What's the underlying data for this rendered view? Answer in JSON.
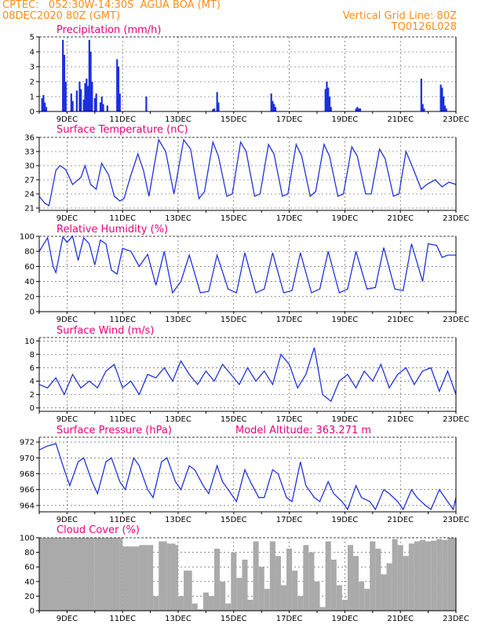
{
  "header": {
    "line1_left": "CPTEC:   052:30W-14:30S  AGUA BOA (MT)",
    "line2_left": "08DEC2020 80Z (GMT)",
    "line1_right": "Vertical Grid Line: 80Z",
    "line2_right": "TQ0126L028"
  },
  "colors": {
    "header": "#ff8c1a",
    "title": "#e6007e",
    "series": "#2233dd",
    "bars": "#1a2fe0",
    "cloud": "#aaaaaa"
  },
  "date_labels": [
    "9DEC",
    "11DEC",
    "13DEC",
    "15DEC",
    "17DEC",
    "19DEC",
    "21DEC",
    "23DEC"
  ],
  "chart_data": [
    {
      "type": "bar",
      "title": "Precipitation (mm/h)",
      "ylim": [
        0,
        5
      ],
      "yticks": [
        0,
        1,
        2,
        3,
        4,
        5
      ],
      "x_range_days": [
        8.0,
        23.0
      ],
      "x": [
        8.1,
        8.15,
        8.2,
        8.25,
        8.85,
        8.9,
        8.95,
        9.15,
        9.2,
        9.35,
        9.45,
        9.5,
        9.6,
        9.65,
        9.7,
        9.75,
        9.8,
        9.85,
        9.9,
        10.0,
        10.05,
        10.2,
        10.25,
        10.3,
        10.45,
        10.8,
        10.85,
        10.9,
        11.85,
        14.25,
        14.3,
        14.4,
        14.45,
        16.35,
        16.4,
        16.45,
        16.5,
        18.3,
        18.35,
        18.4,
        18.45,
        18.5,
        19.4,
        19.45,
        19.5,
        19.55,
        21.75,
        21.8,
        21.85,
        22.45,
        22.5,
        22.55,
        22.6,
        22.65
      ],
      "values": [
        0.9,
        1.1,
        0.6,
        0.3,
        4.8,
        3.8,
        2.0,
        1.2,
        0.7,
        1.4,
        2.0,
        1.5,
        0.8,
        1.9,
        2.2,
        1.7,
        4.8,
        4.0,
        2.0,
        0.9,
        1.2,
        0.6,
        1.0,
        0.5,
        0.4,
        3.5,
        3.0,
        1.2,
        1.0,
        0.15,
        0.2,
        1.3,
        0.6,
        1.2,
        0.7,
        0.5,
        0.3,
        1.5,
        2.0,
        1.6,
        1.0,
        0.3,
        0.2,
        0.3,
        0.2,
        0.2,
        2.2,
        0.5,
        0.2,
        1.8,
        1.6,
        1.0,
        0.4,
        0.2
      ]
    },
    {
      "type": "line",
      "title": "Surface Temperature (nC)",
      "ylim": [
        20.5,
        36
      ],
      "yticks": [
        21,
        24,
        27,
        30,
        33,
        36
      ],
      "x_range_days": [
        8.0,
        23.0
      ],
      "x": [
        8.0,
        8.2,
        8.35,
        8.6,
        8.75,
        8.95,
        9.2,
        9.5,
        9.65,
        9.85,
        10.05,
        10.25,
        10.5,
        10.7,
        10.9,
        11.05,
        11.3,
        11.55,
        11.75,
        11.95,
        12.3,
        12.55,
        12.85,
        13.2,
        13.45,
        13.75,
        13.95,
        14.25,
        14.45,
        14.75,
        14.95,
        15.25,
        15.45,
        15.75,
        15.95,
        16.25,
        16.45,
        16.75,
        16.95,
        17.25,
        17.45,
        17.75,
        17.95,
        18.25,
        18.45,
        18.75,
        18.95,
        19.25,
        19.45,
        19.75,
        19.95,
        20.25,
        20.45,
        20.75,
        20.95,
        21.2,
        21.45,
        21.75,
        21.95,
        22.25,
        22.5,
        22.75,
        23.0
      ],
      "values": [
        23.5,
        22.0,
        21.5,
        29.0,
        30.0,
        29.2,
        26.0,
        27.5,
        30.0,
        26.0,
        25.0,
        30.5,
        28.0,
        23.5,
        22.5,
        23.0,
        28.0,
        32.5,
        29.0,
        23.5,
        35.5,
        33.0,
        24.0,
        35.5,
        33.5,
        23.0,
        24.5,
        35.0,
        32.0,
        23.5,
        24.0,
        35.0,
        33.0,
        23.5,
        24.0,
        34.5,
        32.5,
        23.5,
        24.0,
        34.5,
        32.0,
        23.5,
        24.5,
        34.5,
        32.0,
        23.5,
        24.0,
        34.0,
        32.0,
        24.0,
        24.0,
        33.5,
        31.5,
        23.5,
        24.0,
        33.0,
        29.5,
        25.0,
        26.0,
        27.0,
        25.5,
        26.5,
        26.0
      ]
    },
    {
      "type": "line",
      "title": "Relative Humidity (%)",
      "ylim": [
        0,
        100
      ],
      "yticks": [
        0,
        20,
        40,
        60,
        80,
        100
      ],
      "x_range_days": [
        8.0,
        23.0
      ],
      "x": [
        8.0,
        8.3,
        8.5,
        8.6,
        8.75,
        8.85,
        9.0,
        9.2,
        9.4,
        9.6,
        9.8,
        10.0,
        10.2,
        10.4,
        10.6,
        10.8,
        11.0,
        11.3,
        11.6,
        11.9,
        12.2,
        12.5,
        12.8,
        13.1,
        13.4,
        13.8,
        14.1,
        14.4,
        14.8,
        15.1,
        15.4,
        15.8,
        16.1,
        16.4,
        16.8,
        17.1,
        17.4,
        17.8,
        18.1,
        18.4,
        18.8,
        19.1,
        19.4,
        19.8,
        20.1,
        20.4,
        20.8,
        21.1,
        21.4,
        21.8,
        22.0,
        22.3,
        22.5,
        22.7,
        23.0
      ],
      "values": [
        80,
        98,
        60,
        52,
        80,
        99,
        92,
        100,
        68,
        98,
        90,
        62,
        95,
        90,
        55,
        50,
        84,
        80,
        60,
        76,
        35,
        80,
        25,
        40,
        75,
        25,
        27,
        75,
        30,
        25,
        78,
        25,
        30,
        78,
        25,
        28,
        78,
        25,
        30,
        80,
        25,
        30,
        80,
        30,
        32,
        85,
        30,
        28,
        90,
        40,
        90,
        88,
        72,
        75,
        75
      ]
    },
    {
      "type": "line",
      "title": "Surface Wind (m/s)",
      "ylim": [
        -0.5,
        10.5
      ],
      "yticks": [
        0,
        2,
        4,
        6,
        8,
        10
      ],
      "x_range_days": [
        8.0,
        23.0
      ],
      "x": [
        8.0,
        8.3,
        8.6,
        8.9,
        9.2,
        9.5,
        9.8,
        10.1,
        10.4,
        10.7,
        11.0,
        11.3,
        11.6,
        11.9,
        12.2,
        12.5,
        12.8,
        13.1,
        13.4,
        13.7,
        14.0,
        14.3,
        14.6,
        14.9,
        15.2,
        15.5,
        15.8,
        16.1,
        16.4,
        16.7,
        17.0,
        17.3,
        17.6,
        17.9,
        18.2,
        18.5,
        18.8,
        19.1,
        19.4,
        19.7,
        20.0,
        20.3,
        20.6,
        20.9,
        21.2,
        21.5,
        21.8,
        22.1,
        22.4,
        22.7,
        23.0
      ],
      "values": [
        3.5,
        3.0,
        4.5,
        2.0,
        5.0,
        3.0,
        4.0,
        3.0,
        5.5,
        6.5,
        3.0,
        4.0,
        2.0,
        5.0,
        4.5,
        6.0,
        4.0,
        7.0,
        5.0,
        3.5,
        5.5,
        4.0,
        6.5,
        5.0,
        3.5,
        6.0,
        4.0,
        5.5,
        3.5,
        8.0,
        6.5,
        3.0,
        5.0,
        9.0,
        2.0,
        1.0,
        4.0,
        5.0,
        3.0,
        5.5,
        4.0,
        6.5,
        3.0,
        5.0,
        6.0,
        3.5,
        5.5,
        6.0,
        2.5,
        5.5,
        2.0
      ]
    },
    {
      "type": "line",
      "title": "Surface Pressure (hPa)",
      "annotation": "Model Altitude: 363.271 m",
      "ylim": [
        963.2,
        972.6
      ],
      "yticks": [
        964,
        966,
        968,
        970,
        972
      ],
      "x_range_days": [
        8.0,
        23.0
      ],
      "x": [
        8.0,
        8.3,
        8.6,
        8.9,
        9.1,
        9.4,
        9.6,
        9.9,
        10.1,
        10.4,
        10.6,
        10.9,
        11.1,
        11.4,
        11.6,
        11.9,
        12.1,
        12.4,
        12.6,
        12.9,
        13.1,
        13.4,
        13.6,
        13.9,
        14.1,
        14.4,
        14.6,
        14.9,
        15.1,
        15.4,
        15.6,
        15.9,
        16.1,
        16.4,
        16.6,
        16.9,
        17.1,
        17.4,
        17.6,
        17.9,
        18.1,
        18.4,
        18.6,
        18.9,
        19.1,
        19.4,
        19.6,
        19.9,
        20.1,
        20.4,
        20.6,
        20.9,
        21.1,
        21.4,
        21.6,
        21.9,
        22.1,
        22.4,
        22.6,
        22.9,
        23.0
      ],
      "values": [
        971.0,
        971.5,
        971.8,
        968.5,
        966.5,
        969.5,
        970.0,
        967.0,
        965.5,
        969.5,
        970.0,
        967.0,
        966.0,
        970.0,
        969.0,
        966.0,
        965.0,
        969.5,
        970.0,
        967.0,
        966.0,
        969.0,
        968.5,
        966.5,
        965.5,
        969.0,
        967.0,
        965.5,
        964.5,
        968.5,
        967.0,
        965.0,
        965.0,
        968.5,
        968.0,
        965.0,
        964.5,
        969.5,
        966.5,
        965.0,
        964.5,
        967.0,
        965.5,
        964.5,
        963.5,
        966.5,
        965.0,
        964.5,
        963.5,
        966.0,
        965.5,
        964.5,
        963.5,
        966.0,
        965.0,
        964.0,
        963.5,
        966.0,
        965.0,
        963.5,
        965.0
      ]
    },
    {
      "type": "area",
      "title": "Cloud Cover (%)",
      "ylim": [
        0,
        100
      ],
      "yticks": [
        0,
        20,
        40,
        60,
        80,
        100
      ],
      "x_range_days": [
        8.0,
        23.0
      ],
      "x": [
        8.0,
        9.0,
        10.0,
        10.9,
        11.0,
        11.6,
        11.9,
        12.1,
        12.3,
        12.6,
        12.9,
        13.0,
        13.2,
        13.5,
        13.7,
        13.9,
        14.1,
        14.3,
        14.5,
        14.7,
        14.9,
        15.1,
        15.3,
        15.5,
        15.7,
        15.9,
        16.1,
        16.3,
        16.5,
        16.7,
        16.9,
        17.1,
        17.3,
        17.5,
        17.7,
        17.9,
        18.1,
        18.3,
        18.5,
        18.7,
        18.9,
        19.1,
        19.3,
        19.5,
        19.7,
        19.9,
        20.1,
        20.3,
        20.5,
        20.7,
        20.9,
        21.1,
        21.3,
        21.5,
        21.7,
        21.9,
        22.1,
        22.3,
        22.5,
        22.7,
        23.0
      ],
      "values": [
        100,
        100,
        100,
        100,
        88,
        90,
        90,
        20,
        95,
        92,
        90,
        20,
        55,
        10,
        2,
        25,
        20,
        85,
        40,
        10,
        80,
        45,
        70,
        15,
        95,
        60,
        30,
        95,
        75,
        35,
        85,
        55,
        20,
        90,
        80,
        40,
        5,
        95,
        70,
        35,
        15,
        90,
        75,
        40,
        30,
        95,
        85,
        50,
        65,
        98,
        90,
        75,
        92,
        95,
        97,
        95,
        96,
        98,
        97,
        100,
        97
      ]
    }
  ]
}
